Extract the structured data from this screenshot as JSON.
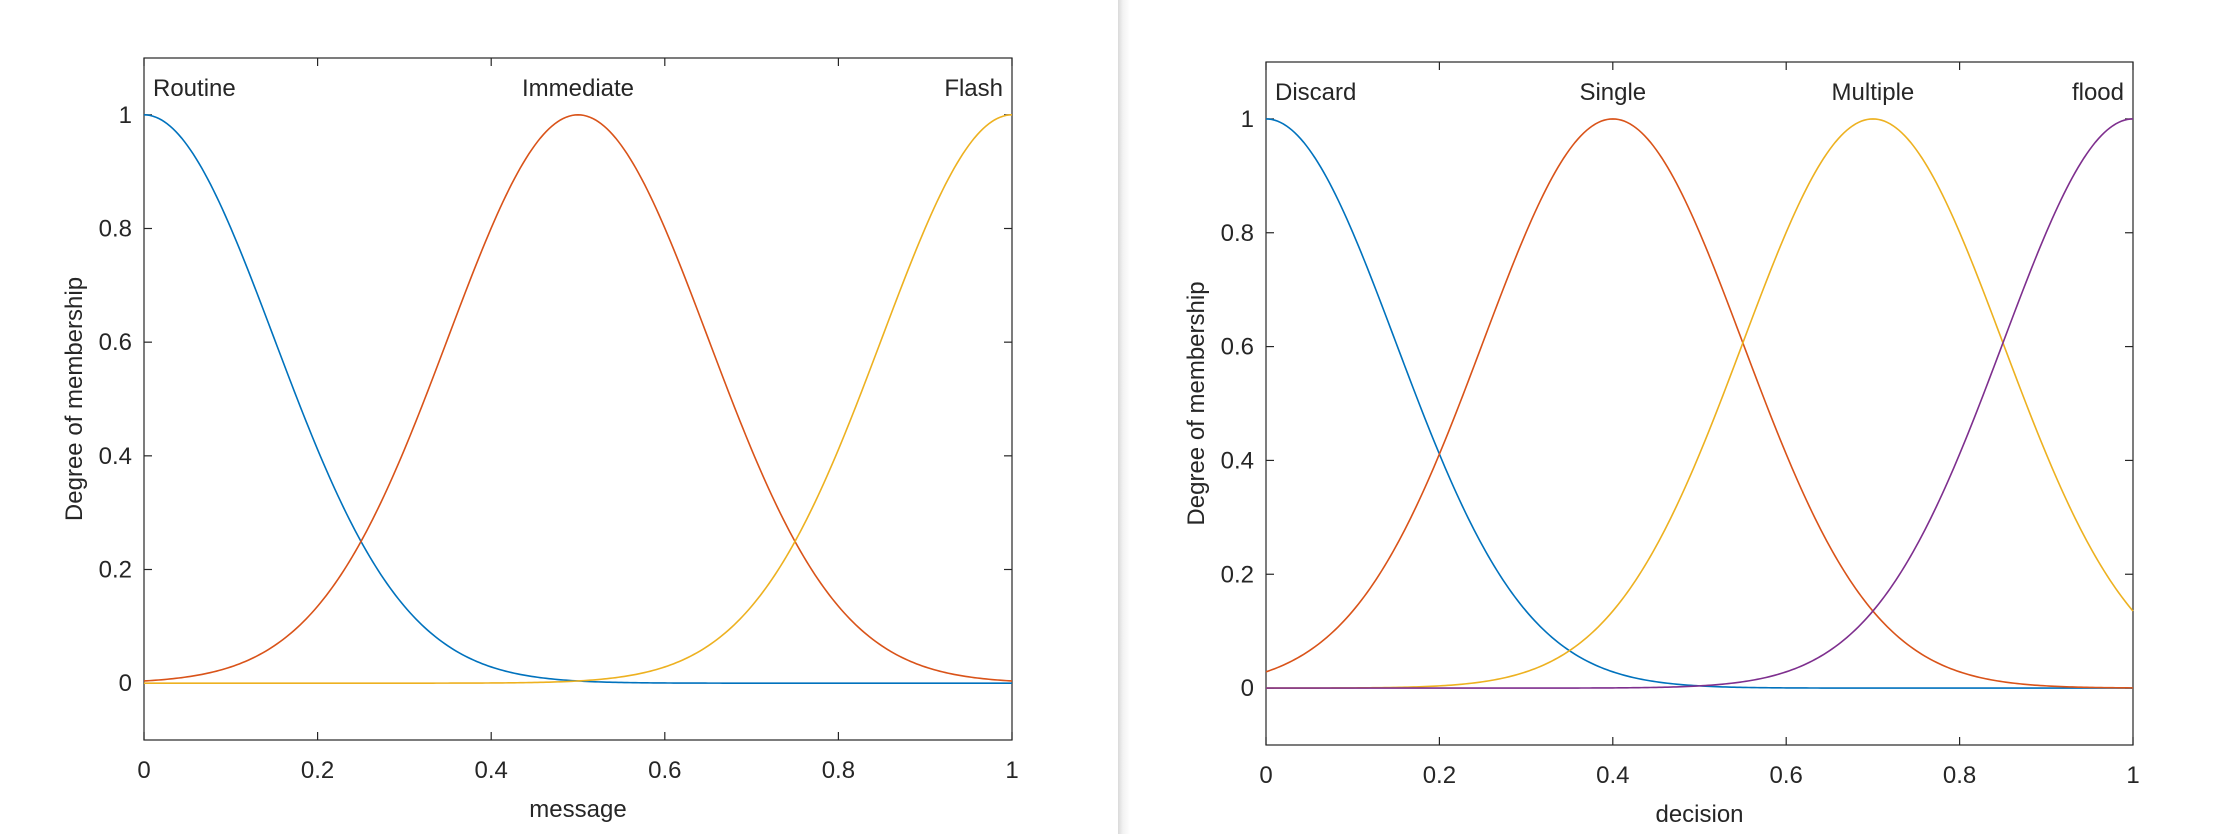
{
  "chart_data": [
    {
      "type": "line",
      "xlabel": "message",
      "ylabel": "Degree of membership",
      "xlim": [
        0,
        1
      ],
      "ylim": [
        -0.1,
        1.1
      ],
      "xticks": [
        "0",
        "0.2",
        "0.4",
        "0.6",
        "0.8",
        "1"
      ],
      "yticks": [
        "0",
        "0.2",
        "0.4",
        "0.6",
        "0.8",
        "1"
      ],
      "grid": false,
      "legend": "none",
      "series": [
        {
          "name": "Routine",
          "shape": "gaussian",
          "center": 0.0,
          "sigma": 0.15,
          "color": "#0072BD",
          "label_align": "start"
        },
        {
          "name": "Immediate",
          "shape": "gaussian",
          "center": 0.5,
          "sigma": 0.15,
          "color": "#D95319",
          "label_align": "middle"
        },
        {
          "name": "Flash",
          "shape": "gaussian",
          "center": 1.0,
          "sigma": 0.15,
          "color": "#EDB120",
          "label_align": "end"
        }
      ]
    },
    {
      "type": "line",
      "xlabel": "decision",
      "ylabel": "Degree of membership",
      "xlim": [
        0,
        1
      ],
      "ylim": [
        -0.1,
        1.1
      ],
      "xticks": [
        "0",
        "0.2",
        "0.4",
        "0.6",
        "0.8",
        "1"
      ],
      "yticks": [
        "0",
        "0.2",
        "0.4",
        "0.6",
        "0.8",
        "1"
      ],
      "grid": false,
      "legend": "none",
      "series": [
        {
          "name": "Discard",
          "shape": "gaussian",
          "center": 0.0,
          "sigma": 0.15,
          "color": "#0072BD",
          "label_align": "start"
        },
        {
          "name": "Single",
          "shape": "gaussian",
          "center": 0.4,
          "sigma": 0.15,
          "color": "#D95319",
          "label_align": "middle"
        },
        {
          "name": "Multiple",
          "shape": "gaussian",
          "center": 0.7,
          "sigma": 0.15,
          "color": "#EDB120",
          "label_align": "middle"
        },
        {
          "name": "flood",
          "shape": "gaussian",
          "center": 1.0,
          "sigma": 0.15,
          "color": "#7E2F8E",
          "label_align": "end"
        }
      ]
    }
  ]
}
